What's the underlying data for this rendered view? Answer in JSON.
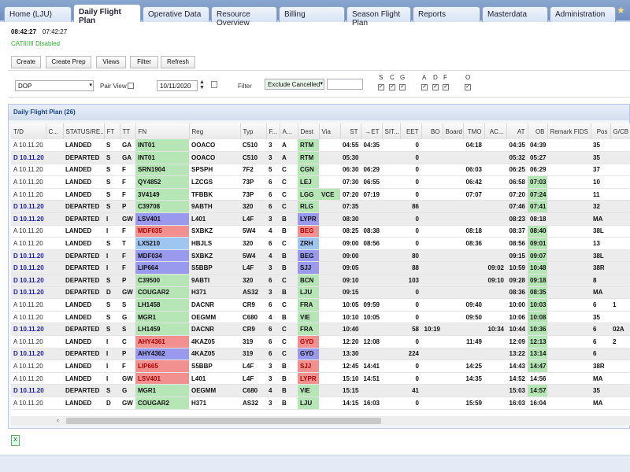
{
  "tabs": [
    "Home (LJU)",
    "Daily Flight Plan",
    "Operative Data",
    "Resource Overview",
    "Billing",
    "Season Flight Plan",
    "Reports",
    "Masterdata",
    "Administration"
  ],
  "active_tab": "Daily Flight Plan",
  "status": {
    "local_time": "08:42:27",
    "utc_time": "07:42:27",
    "cat_status": "CATII/III Disabled",
    "cat_color": "#2db12d"
  },
  "toolbar": {
    "create": "Create",
    "create_prep": "Create Prep",
    "views": "Views",
    "filter": "Filter",
    "refresh": "Refresh"
  },
  "filters": {
    "view_select": "DOP",
    "pair_view_label": "Pair View",
    "pair_view_checked": false,
    "date": "10/11/2020",
    "filter_label": "Filter",
    "filter_select": "Exclude Cancelled",
    "filter_text": "",
    "flags": [
      {
        "label": "S",
        "checked": true
      },
      {
        "label": "C",
        "checked": true
      },
      {
        "label": "G",
        "checked": true
      },
      {
        "label": "A",
        "checked": true
      },
      {
        "label": "D",
        "checked": true
      },
      {
        "label": "F",
        "checked": true
      },
      {
        "label": "O",
        "checked": true
      }
    ]
  },
  "grid": {
    "title": "Daily Flight Plan (26)",
    "columns": [
      "T/D",
      "C...",
      "STATUS/RE...",
      "FT",
      "TT",
      "FN",
      "Reg",
      "Typ",
      "F...",
      "A...",
      "Dest",
      "Via",
      "ST",
      "→ET",
      "SIT...",
      "EET",
      "BO",
      "Board",
      "TMO",
      "AC...",
      "AT",
      "OB",
      "Remark FIDS",
      "Pos",
      "G/CB"
    ],
    "color_legend": {
      "g": "#b6e6b6",
      "p": "#9999ee",
      "r": "#f29090",
      "b": "#9fc6f3"
    },
    "rows": [
      [
        "A 10.11.20",
        "",
        "LANDED",
        "S",
        "GA",
        "INT01",
        "OOACO",
        "C510",
        "3",
        "A",
        "RTM",
        "",
        "04:55",
        "04:35",
        "",
        "0",
        "",
        "",
        "04:18",
        "",
        "04:35",
        "04:39",
        "",
        "35",
        "",
        "g",
        0,
        ""
      ],
      [
        "D 10.11.20",
        "",
        "DEPARTED",
        "S",
        "GA",
        "INT01",
        "OOACO",
        "C510",
        "3",
        "A",
        "RTM",
        "",
        "05:30",
        "",
        "",
        "0",
        "",
        "",
        "",
        "",
        "05:32",
        "05:27",
        "",
        "35",
        "",
        "g",
        0,
        ""
      ],
      [
        "A 10.11.20",
        "",
        "LANDED",
        "S",
        "F",
        "SRN1904",
        "SPSPH",
        "7F2",
        "5",
        "C",
        "CGN",
        "",
        "06:30",
        "06:29",
        "",
        "0",
        "",
        "",
        "06:03",
        "",
        "06:25",
        "06:29",
        "",
        "37",
        "",
        "g",
        0,
        ""
      ],
      [
        "A 10.11.20",
        "",
        "LANDED",
        "S",
        "F",
        "QY4852",
        "LZCGS",
        "73P",
        "6",
        "C",
        "LEJ",
        "",
        "07:30",
        "06:55",
        "",
        "0",
        "",
        "",
        "06:42",
        "",
        "06:58",
        "07:03",
        "",
        "10",
        "",
        "g",
        1,
        ""
      ],
      [
        "A 10.11.20",
        "",
        "LANDED",
        "S",
        "F",
        "3V4149",
        "TFBBK",
        "73P",
        "6",
        "C",
        "LGG",
        "VCE",
        "07:20",
        "07:19",
        "",
        "0",
        "",
        "",
        "07:07",
        "",
        "07:20",
        "07:24",
        "",
        "11",
        "",
        "g",
        1,
        "g"
      ],
      [
        "D 10.11.20",
        "",
        "DEPARTED",
        "S",
        "P",
        "C39708",
        "9ABTH",
        "320",
        "6",
        "C",
        "RLG",
        "",
        "07:35",
        "",
        "",
        "86",
        "",
        "",
        "",
        "",
        "07:46",
        "07:41",
        "",
        "32",
        "",
        "g",
        1,
        ""
      ],
      [
        "D 10.11.20",
        "",
        "DEPARTED",
        "I",
        "GW",
        "LSV401",
        "L401",
        "L4F",
        "3",
        "B",
        "LYPR",
        "",
        "08:30",
        "",
        "",
        "0",
        "",
        "",
        "",
        "",
        "08:23",
        "08:18",
        "",
        "MA",
        "",
        "p",
        0,
        ""
      ],
      [
        "A 10.11.20",
        "",
        "LANDED",
        "I",
        "F",
        "MDF035",
        "SXBKZ",
        "5W4",
        "4",
        "B",
        "BEG",
        "",
        "08:25",
        "08:38",
        "",
        "0",
        "",
        "",
        "08:18",
        "",
        "08:37",
        "08:40",
        "",
        "38L",
        "",
        "r",
        1,
        ""
      ],
      [
        "A 10.11.20",
        "",
        "LANDED",
        "S",
        "T",
        "LX5210",
        "HBJLS",
        "320",
        "6",
        "C",
        "ZRH",
        "",
        "09:00",
        "08:56",
        "",
        "0",
        "",
        "",
        "08:36",
        "",
        "08:56",
        "09:01",
        "",
        "13",
        "",
        "b",
        1,
        ""
      ],
      [
        "D 10.11.20",
        "",
        "DEPARTED",
        "I",
        "F",
        "MDF034",
        "SXBKZ",
        "5W4",
        "4",
        "B",
        "BEG",
        "",
        "09:00",
        "",
        "",
        "80",
        "",
        "",
        "",
        "",
        "09:15",
        "09:07",
        "",
        "38L",
        "",
        "p",
        1,
        ""
      ],
      [
        "D 10.11.20",
        "",
        "DEPARTED",
        "I",
        "F",
        "LIP664",
        "S5BBP",
        "L4F",
        "3",
        "B",
        "SJJ",
        "",
        "09:05",
        "",
        "",
        "88",
        "",
        "",
        "",
        "09:02",
        "10:59",
        "10:48",
        "",
        "38R",
        "",
        "p",
        1,
        ""
      ],
      [
        "D 10.11.20",
        "",
        "DEPARTED",
        "S",
        "P",
        "C39500",
        "9ABTI",
        "320",
        "6",
        "C",
        "BCN",
        "",
        "09:10",
        "",
        "",
        "103",
        "",
        "",
        "",
        "09:10",
        "09:28",
        "09:18",
        "",
        "8",
        "",
        "g",
        1,
        ""
      ],
      [
        "D 10.11.20",
        "",
        "DEPARTED",
        "D",
        "GW",
        "COUGAR2",
        "H371",
        "AS32",
        "3",
        "B",
        "LJU",
        "",
        "09:15",
        "",
        "",
        "0",
        "",
        "",
        "",
        "",
        "08:36",
        "08:35",
        "",
        "MA",
        "",
        "g",
        1,
        ""
      ],
      [
        "A 10.11.20",
        "",
        "LANDED",
        "S",
        "S",
        "LH1458",
        "DACNR",
        "CR9",
        "6",
        "C",
        "FRA",
        "",
        "10:05",
        "09:59",
        "",
        "0",
        "",
        "",
        "09:40",
        "",
        "10:00",
        "10:03",
        "",
        "6",
        "1",
        "g",
        1,
        ""
      ],
      [
        "A 10.11.20",
        "",
        "LANDED",
        "S",
        "G",
        "MGR1",
        "OEGMM",
        "C680",
        "4",
        "B",
        "VIE",
        "",
        "10:10",
        "10:05",
        "",
        "0",
        "",
        "",
        "09:50",
        "",
        "10:06",
        "10:08",
        "",
        "35",
        "",
        "g",
        1,
        ""
      ],
      [
        "D 10.11.20",
        "",
        "DEPARTED",
        "S",
        "S",
        "LH1459",
        "DACNR",
        "CR9",
        "6",
        "C",
        "FRA",
        "",
        "10:40",
        "",
        "",
        "58",
        "10:19",
        "",
        "",
        "10:34",
        "10:44",
        "10:36",
        "",
        "6",
        "02A",
        "g",
        1,
        ""
      ],
      [
        "A 10.11.20",
        "",
        "LANDED",
        "I",
        "C",
        "AHY4361",
        "4KAZ05",
        "319",
        "6",
        "C",
        "GYD",
        "",
        "12:20",
        "12:08",
        "",
        "0",
        "",
        "",
        "11:49",
        "",
        "12:09",
        "12:13",
        "",
        "6",
        "2",
        "r",
        1,
        ""
      ],
      [
        "D 10.11.20",
        "",
        "DEPARTED",
        "I",
        "P",
        "AHY4362",
        "4KAZ05",
        "319",
        "6",
        "C",
        "GYD",
        "",
        "13:30",
        "",
        "",
        "224",
        "",
        "",
        "",
        "",
        "13:22",
        "13:14",
        "",
        "6",
        "",
        "p",
        1,
        ""
      ],
      [
        "A 10.11.20",
        "",
        "LANDED",
        "I",
        "F",
        "LIP665",
        "S5BBP",
        "L4F",
        "3",
        "B",
        "SJJ",
        "",
        "12:45",
        "14:41",
        "",
        "0",
        "",
        "",
        "14:25",
        "",
        "14:43",
        "14:47",
        "",
        "38R",
        "",
        "r",
        1,
        ""
      ],
      [
        "A 10.11.20",
        "",
        "LANDED",
        "I",
        "GW",
        "LSV401",
        "L401",
        "L4F",
        "3",
        "B",
        "LYPR",
        "",
        "15:10",
        "14:51",
        "",
        "0",
        "",
        "",
        "14:35",
        "",
        "14:52",
        "14:56",
        "",
        "MA",
        "",
        "r",
        0,
        ""
      ],
      [
        "D 10.11.20",
        "",
        "DEPARTED",
        "S",
        "G",
        "MGR1",
        "OEGMM",
        "C680",
        "4",
        "B",
        "VIE",
        "",
        "15:15",
        "",
        "",
        "41",
        "",
        "",
        "",
        "",
        "15:03",
        "14:57",
        "",
        "35",
        "",
        "g",
        1,
        ""
      ],
      [
        "A 10.11.20",
        "",
        "LANDED",
        "D",
        "GW",
        "COUGAR2",
        "H371",
        "AS32",
        "3",
        "B",
        "LJU",
        "",
        "14:15",
        "16:03",
        "",
        "0",
        "",
        "",
        "15:59",
        "",
        "16:03",
        "16:04",
        "",
        "MA",
        "",
        "g",
        0,
        ""
      ]
    ]
  },
  "icons": {
    "favorite": "star-icon",
    "export": "excel-export-icon",
    "calendar": "calendar-icon"
  }
}
